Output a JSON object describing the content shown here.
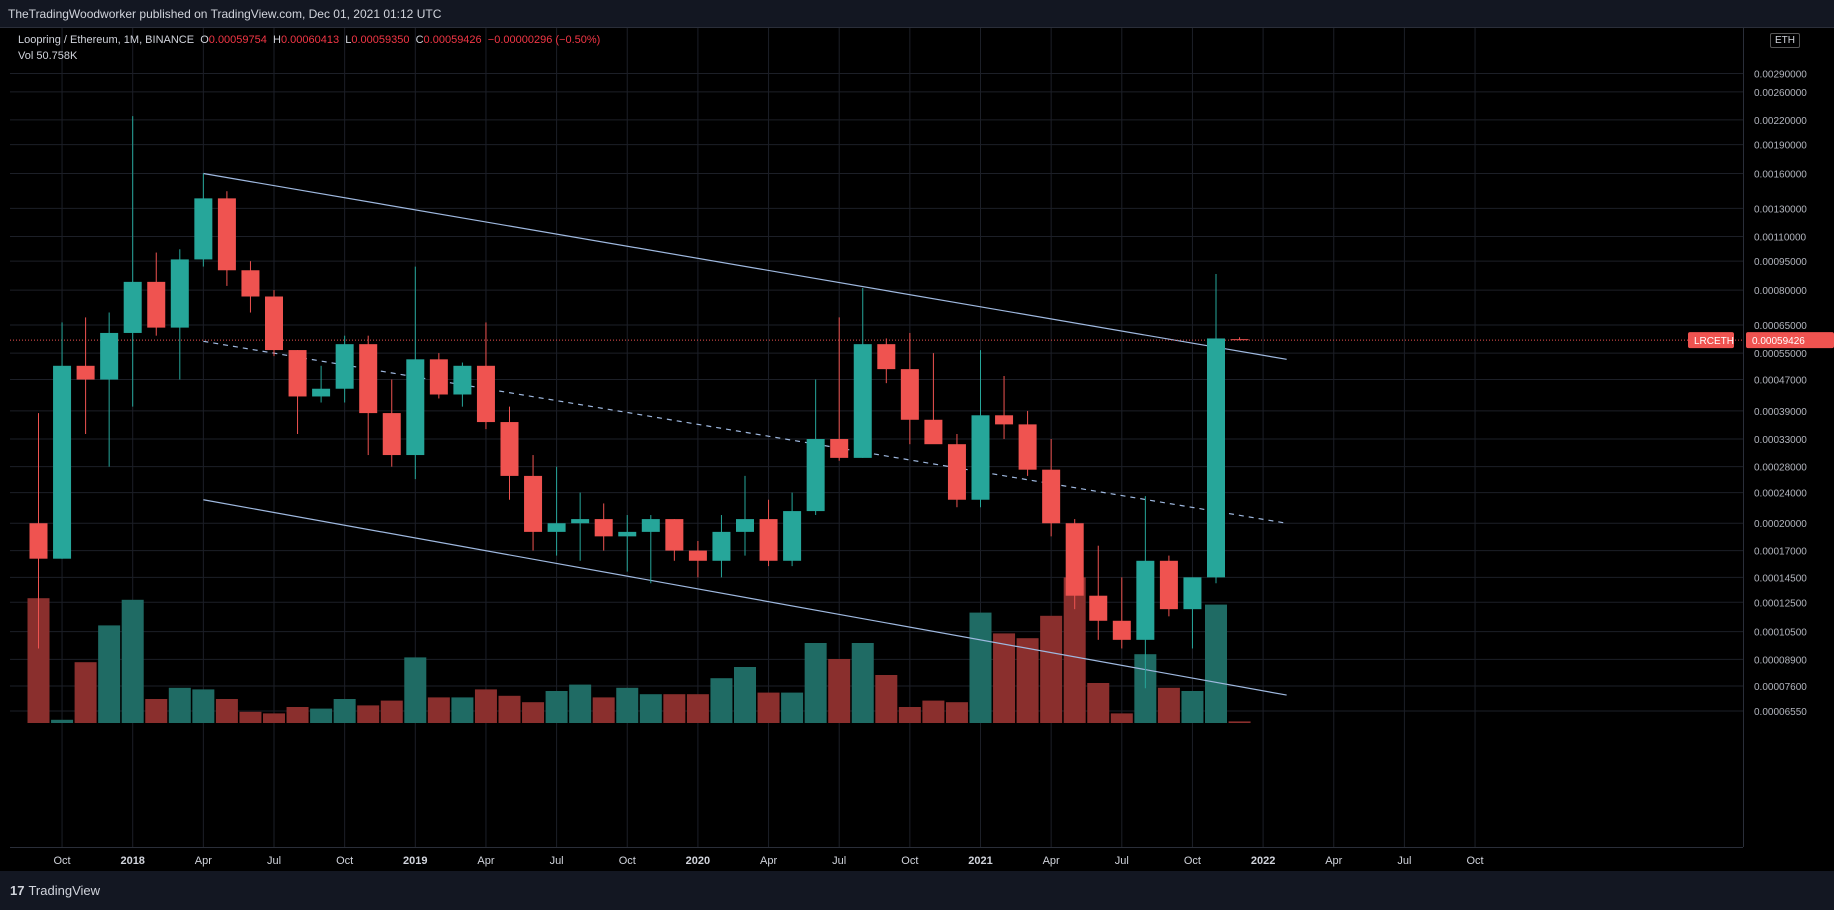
{
  "header": {
    "published": "TheTradingWoodworker published on TradingView.com, Dec 01, 2021 01:12 UTC"
  },
  "legend": {
    "pair": "Loopring / Ethereum, 1M, BINANCE",
    "o_label": "O",
    "o_value": "0.00059754",
    "h_label": "H",
    "h_value": "0.00060413",
    "l_label": "L",
    "l_value": "0.00059350",
    "c_label": "C",
    "c_value": "0.00059426",
    "change": "−0.00000296 (−0.50%)",
    "vol_label": "Vol",
    "vol_value": "50.758K"
  },
  "price_scale": {
    "currency": "ETH"
  },
  "last_price": {
    "symbol": "LRCETH",
    "value": "0.00059426"
  },
  "footer": {
    "brand": "TradingView"
  },
  "colors": {
    "up": "#26a69a",
    "down": "#ef5350",
    "trendline": "#9fb9e0",
    "background": "#000000"
  },
  "chart_data": {
    "type": "candlestick",
    "symbol": "LRCETH",
    "interval": "1M",
    "y_scale": "log",
    "y_ticks": [
      "0.00290000",
      "0.00260000",
      "0.00220000",
      "0.00190000",
      "0.00160000",
      "0.00130000",
      "0.00110000",
      "0.00095000",
      "0.00080000",
      "0.00065000",
      "0.00055000",
      "0.00047000",
      "0.00039000",
      "0.00033000",
      "0.00028000",
      "0.00024000",
      "0.00020000",
      "0.00017000",
      "0.00014500",
      "0.00012500",
      "0.00010500",
      "0.00008900",
      "0.00007600",
      "0.00006550"
    ],
    "x_ticks": [
      "Oct",
      "2018",
      "Apr",
      "Jul",
      "Oct",
      "2019",
      "Apr",
      "Jul",
      "Oct",
      "2020",
      "Apr",
      "Jul",
      "Oct",
      "2021",
      "Apr",
      "Jul",
      "Oct",
      "2022",
      "Apr",
      "Jul",
      "Oct"
    ],
    "candles": [
      {
        "t": "2017-09",
        "o": 0.0002,
        "h": 0.000385,
        "l": 9.5e-05,
        "c": 0.000162,
        "v": 0.78
      },
      {
        "t": "2017-10",
        "o": 0.000162,
        "h": 0.00066,
        "l": 0.000162,
        "c": 0.00051,
        "v": 0.02
      },
      {
        "t": "2017-11",
        "o": 0.00051,
        "h": 0.00068,
        "l": 0.00034,
        "c": 0.00047,
        "v": 0.38
      },
      {
        "t": "2017-12",
        "o": 0.00047,
        "h": 0.0007,
        "l": 0.00028,
        "c": 0.00062,
        "v": 0.61
      },
      {
        "t": "2018-01",
        "o": 0.00062,
        "h": 0.00225,
        "l": 0.0004,
        "c": 0.00084,
        "v": 0.77
      },
      {
        "t": "2018-02",
        "o": 0.00084,
        "h": 0.001,
        "l": 0.00061,
        "c": 0.00064,
        "v": 0.15
      },
      {
        "t": "2018-03",
        "o": 0.00064,
        "h": 0.00102,
        "l": 0.00047,
        "c": 0.00096,
        "v": 0.22
      },
      {
        "t": "2018-04",
        "o": 0.00096,
        "h": 0.0016,
        "l": 0.00092,
        "c": 0.00138,
        "v": 0.21
      },
      {
        "t": "2018-05",
        "o": 0.00138,
        "h": 0.00144,
        "l": 0.00082,
        "c": 0.0009,
        "v": 0.15
      },
      {
        "t": "2018-06",
        "o": 0.0009,
        "h": 0.00095,
        "l": 0.0007,
        "c": 0.00077,
        "v": 0.07
      },
      {
        "t": "2018-07",
        "o": 0.00077,
        "h": 0.0008,
        "l": 0.00054,
        "c": 0.00056,
        "v": 0.06
      },
      {
        "t": "2018-08",
        "o": 0.00056,
        "h": 0.00056,
        "l": 0.00034,
        "c": 0.000425,
        "v": 0.1
      },
      {
        "t": "2018-09",
        "o": 0.000425,
        "h": 0.00051,
        "l": 0.00041,
        "c": 0.000445,
        "v": 0.09
      },
      {
        "t": "2018-10",
        "o": 0.000445,
        "h": 0.00061,
        "l": 0.00041,
        "c": 0.00058,
        "v": 0.15
      },
      {
        "t": "2018-11",
        "o": 0.00058,
        "h": 0.00061,
        "l": 0.0003,
        "c": 0.000385,
        "v": 0.11
      },
      {
        "t": "2018-12",
        "o": 0.000385,
        "h": 0.00047,
        "l": 0.00028,
        "c": 0.0003,
        "v": 0.14
      },
      {
        "t": "2019-01",
        "o": 0.0003,
        "h": 0.00092,
        "l": 0.00026,
        "c": 0.00053,
        "v": 0.41
      },
      {
        "t": "2019-02",
        "o": 0.00053,
        "h": 0.00055,
        "l": 0.00042,
        "c": 0.00043,
        "v": 0.16
      },
      {
        "t": "2019-03",
        "o": 0.00043,
        "h": 0.00052,
        "l": 0.0004,
        "c": 0.00051,
        "v": 0.16
      },
      {
        "t": "2019-04",
        "o": 0.00051,
        "h": 0.00066,
        "l": 0.00035,
        "c": 0.000365,
        "v": 0.21
      },
      {
        "t": "2019-05",
        "o": 0.000365,
        "h": 0.0004,
        "l": 0.00023,
        "c": 0.000265,
        "v": 0.17
      },
      {
        "t": "2019-06",
        "o": 0.000265,
        "h": 0.0003,
        "l": 0.00017,
        "c": 0.00019,
        "v": 0.13
      },
      {
        "t": "2019-07",
        "o": 0.00019,
        "h": 0.00028,
        "l": 0.000165,
        "c": 0.0002,
        "v": 0.2
      },
      {
        "t": "2019-08",
        "o": 0.0002,
        "h": 0.00024,
        "l": 0.00016,
        "c": 0.000205,
        "v": 0.24
      },
      {
        "t": "2019-09",
        "o": 0.000205,
        "h": 0.000225,
        "l": 0.00017,
        "c": 0.000185,
        "v": 0.16
      },
      {
        "t": "2019-10",
        "o": 0.000185,
        "h": 0.00021,
        "l": 0.00015,
        "c": 0.00019,
        "v": 0.22
      },
      {
        "t": "2019-11",
        "o": 0.00019,
        "h": 0.00021,
        "l": 0.00014,
        "c": 0.000205,
        "v": 0.18
      },
      {
        "t": "2019-12",
        "o": 0.000205,
        "h": 0.000205,
        "l": 0.00016,
        "c": 0.00017,
        "v": 0.18
      },
      {
        "t": "2020-01",
        "o": 0.00017,
        "h": 0.00018,
        "l": 0.000145,
        "c": 0.00016,
        "v": 0.18
      },
      {
        "t": "2020-02",
        "o": 0.00016,
        "h": 0.00021,
        "l": 0.000145,
        "c": 0.00019,
        "v": 0.28
      },
      {
        "t": "2020-03",
        "o": 0.00019,
        "h": 0.000265,
        "l": 0.000165,
        "c": 0.000205,
        "v": 0.35
      },
      {
        "t": "2020-04",
        "o": 0.000205,
        "h": 0.00023,
        "l": 0.000155,
        "c": 0.00016,
        "v": 0.19
      },
      {
        "t": "2020-05",
        "o": 0.00016,
        "h": 0.00024,
        "l": 0.000155,
        "c": 0.000215,
        "v": 0.19
      },
      {
        "t": "2020-06",
        "o": 0.000215,
        "h": 0.00047,
        "l": 0.00021,
        "c": 0.00033,
        "v": 0.5
      },
      {
        "t": "2020-07",
        "o": 0.00033,
        "h": 0.00068,
        "l": 0.00029,
        "c": 0.000295,
        "v": 0.4
      },
      {
        "t": "2020-08",
        "o": 0.000295,
        "h": 0.00081,
        "l": 0.000295,
        "c": 0.00058,
        "v": 0.5
      },
      {
        "t": "2020-09",
        "o": 0.00058,
        "h": 0.0006,
        "l": 0.00046,
        "c": 0.0005,
        "v": 0.3
      },
      {
        "t": "2020-10",
        "o": 0.0005,
        "h": 0.00062,
        "l": 0.00032,
        "c": 0.00037,
        "v": 0.1
      },
      {
        "t": "2020-11",
        "o": 0.00037,
        "h": 0.00055,
        "l": 0.00033,
        "c": 0.00032,
        "v": 0.14
      },
      {
        "t": "2020-12",
        "o": 0.00032,
        "h": 0.00034,
        "l": 0.00022,
        "c": 0.00023,
        "v": 0.13
      },
      {
        "t": "2021-01",
        "o": 0.00023,
        "h": 0.00056,
        "l": 0.00022,
        "c": 0.00038,
        "v": 0.69
      },
      {
        "t": "2021-02",
        "o": 0.00038,
        "h": 0.00048,
        "l": 0.00033,
        "c": 0.00036,
        "v": 0.56
      },
      {
        "t": "2021-03",
        "o": 0.00036,
        "h": 0.00039,
        "l": 0.000265,
        "c": 0.000275,
        "v": 0.53
      },
      {
        "t": "2021-04",
        "o": 0.000275,
        "h": 0.00033,
        "l": 0.000185,
        "c": 0.0002,
        "v": 0.67
      },
      {
        "t": "2021-05",
        "o": 0.0002,
        "h": 0.000205,
        "l": 0.00012,
        "c": 0.00013,
        "v": 0.91
      },
      {
        "t": "2021-06",
        "o": 0.00013,
        "h": 0.000175,
        "l": 0.0001,
        "c": 0.000112,
        "v": 0.25
      },
      {
        "t": "2021-07",
        "o": 0.000112,
        "h": 0.000145,
        "l": 9.5e-05,
        "c": 0.0001,
        "v": 0.06
      },
      {
        "t": "2021-08",
        "o": 0.0001,
        "h": 0.000235,
        "l": 7.5e-05,
        "c": 0.00016,
        "v": 0.43
      },
      {
        "t": "2021-09",
        "o": 0.00016,
        "h": 0.000165,
        "l": 0.000115,
        "c": 0.00012,
        "v": 0.22
      },
      {
        "t": "2021-10",
        "o": 0.00012,
        "h": 0.000145,
        "l": 9.5e-05,
        "c": 0.000145,
        "v": 0.2
      },
      {
        "t": "2021-11",
        "o": 0.000145,
        "h": 0.00088,
        "l": 0.00014,
        "c": 0.0006,
        "v": 0.74
      },
      {
        "t": "2021-12",
        "o": 0.00059754,
        "h": 0.00060413,
        "l": 0.0005935,
        "c": 0.00059426,
        "v": 0.01
      }
    ],
    "trendlines": [
      {
        "style": "solid",
        "from": {
          "t": "2018-04",
          "p": 0.0016
        },
        "to": {
          "t": "2022-02",
          "p": 0.00053
        }
      },
      {
        "style": "dashed",
        "from": {
          "t": "2018-04",
          "p": 0.00059
        },
        "to": {
          "t": "2022-02",
          "p": 0.0002
        }
      },
      {
        "style": "solid",
        "from": {
          "t": "2018-04",
          "p": 0.00023
        },
        "to": {
          "t": "2022-02",
          "p": 7.2e-05
        }
      }
    ],
    "last_price_line": 0.00059426
  }
}
